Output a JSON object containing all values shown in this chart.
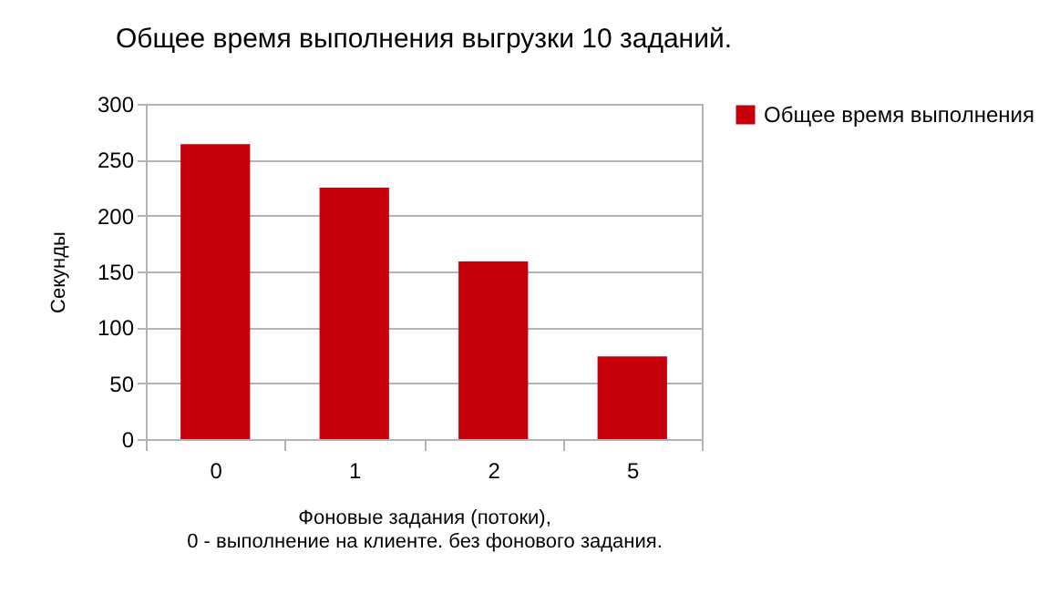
{
  "chart_data": {
    "type": "bar",
    "title": "Общее время выполнения выгрузки 10 заданий.",
    "xlabel": "Фоновые задания (потоки),\n0 - выполнение на клиенте. без фонового задания.",
    "ylabel": "Секунды",
    "categories": [
      "0",
      "1",
      "2",
      "5"
    ],
    "series": [
      {
        "name": "Общее время выполнения",
        "color": "#c5000b",
        "values": [
          264,
          225,
          159,
          74
        ]
      }
    ],
    "ylim": [
      0,
      300
    ],
    "yticks": [
      0,
      50,
      100,
      150,
      200,
      250,
      300
    ],
    "grid": "y",
    "legend": "right"
  }
}
